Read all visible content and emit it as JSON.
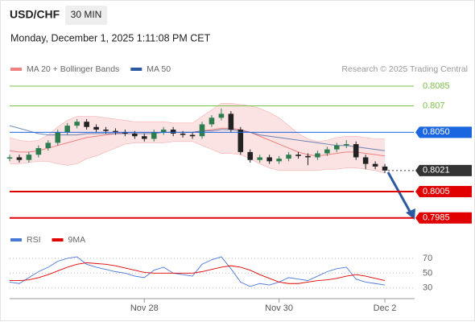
{
  "header": {
    "symbol": "USD/CHF",
    "interval": "30 MIN",
    "datetime": "Monday, December 1, 2025 1:11:08 PM CET",
    "credit": "Research © 2025 Trading Central"
  },
  "chart_data": [
    {
      "type": "candlestick",
      "legend": [
        {
          "name": "MA 20 + Bollinger Bands",
          "color": "#f08080"
        },
        {
          "name": "MA 50",
          "color": "#2c5aa0"
        }
      ],
      "up_color": "#2e7d4f",
      "down_color": "#222222",
      "ohlc": [
        [
          0.803,
          0.8033,
          0.8028,
          0.8031
        ],
        [
          0.8031,
          0.8033,
          0.8027,
          0.8029
        ],
        [
          0.8029,
          0.8035,
          0.8027,
          0.8033
        ],
        [
          0.8033,
          0.804,
          0.8031,
          0.8038
        ],
        [
          0.8038,
          0.8044,
          0.8036,
          0.8042
        ],
        [
          0.8042,
          0.8052,
          0.804,
          0.805
        ],
        [
          0.805,
          0.8057,
          0.8048,
          0.8055
        ],
        [
          0.8055,
          0.806,
          0.8053,
          0.8058
        ],
        [
          0.8058,
          0.806,
          0.8052,
          0.8054
        ],
        [
          0.8054,
          0.8056,
          0.805,
          0.8052
        ],
        [
          0.8052,
          0.8054,
          0.8049,
          0.8051
        ],
        [
          0.8051,
          0.8053,
          0.8048,
          0.805
        ],
        [
          0.805,
          0.8052,
          0.8047,
          0.8049
        ],
        [
          0.8049,
          0.8051,
          0.8045,
          0.8047
        ],
        [
          0.8047,
          0.8049,
          0.8043,
          0.8045
        ],
        [
          0.8045,
          0.8052,
          0.8043,
          0.805
        ],
        [
          0.805,
          0.8054,
          0.8048,
          0.8052
        ],
        [
          0.8052,
          0.8054,
          0.8047,
          0.8049
        ],
        [
          0.8049,
          0.8051,
          0.8046,
          0.8048
        ],
        [
          0.8048,
          0.805,
          0.8045,
          0.8047
        ],
        [
          0.8047,
          0.8058,
          0.8045,
          0.8056
        ],
        [
          0.8056,
          0.8063,
          0.8054,
          0.8061
        ],
        [
          0.8061,
          0.8068,
          0.8059,
          0.8064
        ],
        [
          0.8064,
          0.8066,
          0.805,
          0.8052
        ],
        [
          0.8052,
          0.8054,
          0.8033,
          0.8035
        ],
        [
          0.8035,
          0.8037,
          0.8027,
          0.8029
        ],
        [
          0.8029,
          0.8033,
          0.8027,
          0.8031
        ],
        [
          0.8031,
          0.8033,
          0.8026,
          0.8028
        ],
        [
          0.8028,
          0.8032,
          0.8026,
          0.803
        ],
        [
          0.803,
          0.8035,
          0.8028,
          0.8033
        ],
        [
          0.8033,
          0.8035,
          0.803,
          0.8032
        ],
        [
          0.8032,
          0.8034,
          0.8025,
          0.8031
        ],
        [
          0.8031,
          0.8036,
          0.8029,
          0.8034
        ],
        [
          0.8034,
          0.8039,
          0.8032,
          0.8037
        ],
        [
          0.8037,
          0.8042,
          0.8035,
          0.804
        ],
        [
          0.804,
          0.8044,
          0.8038,
          0.8041
        ],
        [
          0.8041,
          0.8043,
          0.8029,
          0.8031
        ],
        [
          0.8031,
          0.8033,
          0.8022,
          0.8026
        ],
        [
          0.8026,
          0.8028,
          0.8022,
          0.8024
        ],
        [
          0.8024,
          0.8026,
          0.8019,
          0.8021
        ]
      ],
      "ma20": [
        0.8036,
        0.8035,
        0.8035,
        0.8036,
        0.8038,
        0.804,
        0.8042,
        0.8044,
        0.8046,
        0.8047,
        0.8048,
        0.8049,
        0.805,
        0.805,
        0.805,
        0.805,
        0.805,
        0.805,
        0.805,
        0.805,
        0.8051,
        0.8052,
        0.8053,
        0.8053,
        0.8052,
        0.805,
        0.8047,
        0.8044,
        0.8041,
        0.8038,
        0.8035,
        0.8033,
        0.8032,
        0.8033,
        0.8034,
        0.8035,
        0.8035,
        0.8034,
        0.8033,
        0.8032
      ],
      "ma50": [
        0.8055,
        0.8053,
        0.8051,
        0.8049,
        0.8048,
        0.8048,
        0.8048,
        0.8048,
        0.8049,
        0.8049,
        0.8049,
        0.8049,
        0.8049,
        0.8049,
        0.8049,
        0.8049,
        0.805,
        0.805,
        0.805,
        0.805,
        0.8051,
        0.8051,
        0.8052,
        0.8052,
        0.8051,
        0.805,
        0.8048,
        0.8047,
        0.8046,
        0.8045,
        0.8044,
        0.8043,
        0.8042,
        0.8041,
        0.804,
        0.804,
        0.8039,
        0.8038,
        0.8037,
        0.8036
      ],
      "bb_upper": [
        0.8046,
        0.8044,
        0.8043,
        0.8044,
        0.8048,
        0.8054,
        0.8059,
        0.8062,
        0.8062,
        0.8062,
        0.8061,
        0.806,
        0.8059,
        0.8058,
        0.8058,
        0.8058,
        0.8058,
        0.8057,
        0.8057,
        0.8057,
        0.8062,
        0.8067,
        0.8072,
        0.8072,
        0.8071,
        0.807,
        0.8068,
        0.8065,
        0.8061,
        0.8055,
        0.8049,
        0.8045,
        0.8043,
        0.8044,
        0.8046,
        0.8047,
        0.8047,
        0.8046,
        0.8045,
        0.8045
      ],
      "bb_lower": [
        0.8026,
        0.8026,
        0.8027,
        0.8028,
        0.8028,
        0.8026,
        0.8025,
        0.8026,
        0.803,
        0.8032,
        0.8035,
        0.8038,
        0.8041,
        0.8042,
        0.8042,
        0.8042,
        0.8042,
        0.8043,
        0.8043,
        0.8043,
        0.804,
        0.8037,
        0.8034,
        0.8034,
        0.8033,
        0.803,
        0.8026,
        0.8023,
        0.8021,
        0.8021,
        0.8021,
        0.8021,
        0.8021,
        0.8022,
        0.8022,
        0.8023,
        0.8023,
        0.8022,
        0.8021,
        0.8019
      ],
      "levels": [
        {
          "value": 0.8085,
          "color": "#7cbf4a",
          "width": 1,
          "dashed": false,
          "boxed": false
        },
        {
          "value": 0.807,
          "color": "#7cbf4a",
          "width": 1,
          "dashed": false,
          "boxed": false
        },
        {
          "value": 0.805,
          "label": "0.8050",
          "color": "#1a66e0",
          "width": 1,
          "dashed": false,
          "boxed": true
        },
        {
          "value": 0.8021,
          "color": "#333333",
          "width": 1,
          "dashed": true,
          "boxed": true
        },
        {
          "value": 0.8005,
          "color": "#e00000",
          "width": 2,
          "dashed": false,
          "boxed": true
        },
        {
          "value": 0.7985,
          "color": "#e00000",
          "width": 2,
          "dashed": false,
          "boxed": true
        }
      ],
      "xlim": [
        0,
        40
      ],
      "ylim": [
        0.798,
        0.8092
      ]
    },
    {
      "type": "line",
      "series": [
        {
          "name": "RSI",
          "color": "#4a78d8",
          "values": [
            38,
            36,
            44,
            52,
            58,
            66,
            70,
            72,
            62,
            58,
            55,
            52,
            50,
            46,
            44,
            54,
            58,
            50,
            48,
            46,
            62,
            68,
            72,
            56,
            38,
            32,
            36,
            34,
            38,
            44,
            42,
            40,
            46,
            52,
            56,
            58,
            42,
            38,
            36,
            34
          ]
        },
        {
          "name": "9MA",
          "color": "#e00000",
          "values": [
            40,
            40,
            41,
            44,
            48,
            53,
            58,
            62,
            64,
            63,
            62,
            60,
            57,
            54,
            51,
            50,
            50,
            50,
            50,
            50,
            52,
            55,
            58,
            60,
            58,
            54,
            48,
            43,
            38,
            36,
            36,
            38,
            40,
            41,
            43,
            46,
            48,
            46,
            43,
            40
          ]
        }
      ],
      "xlim": [
        0,
        40
      ],
      "ylim": [
        20,
        80
      ],
      "yticks": [
        30,
        50,
        70
      ],
      "xticks": [
        {
          "value": 14,
          "label": "Nov 28"
        },
        {
          "value": 28,
          "label": "Nov 30"
        },
        {
          "value": 39,
          "label": "Dec 2"
        }
      ]
    }
  ]
}
